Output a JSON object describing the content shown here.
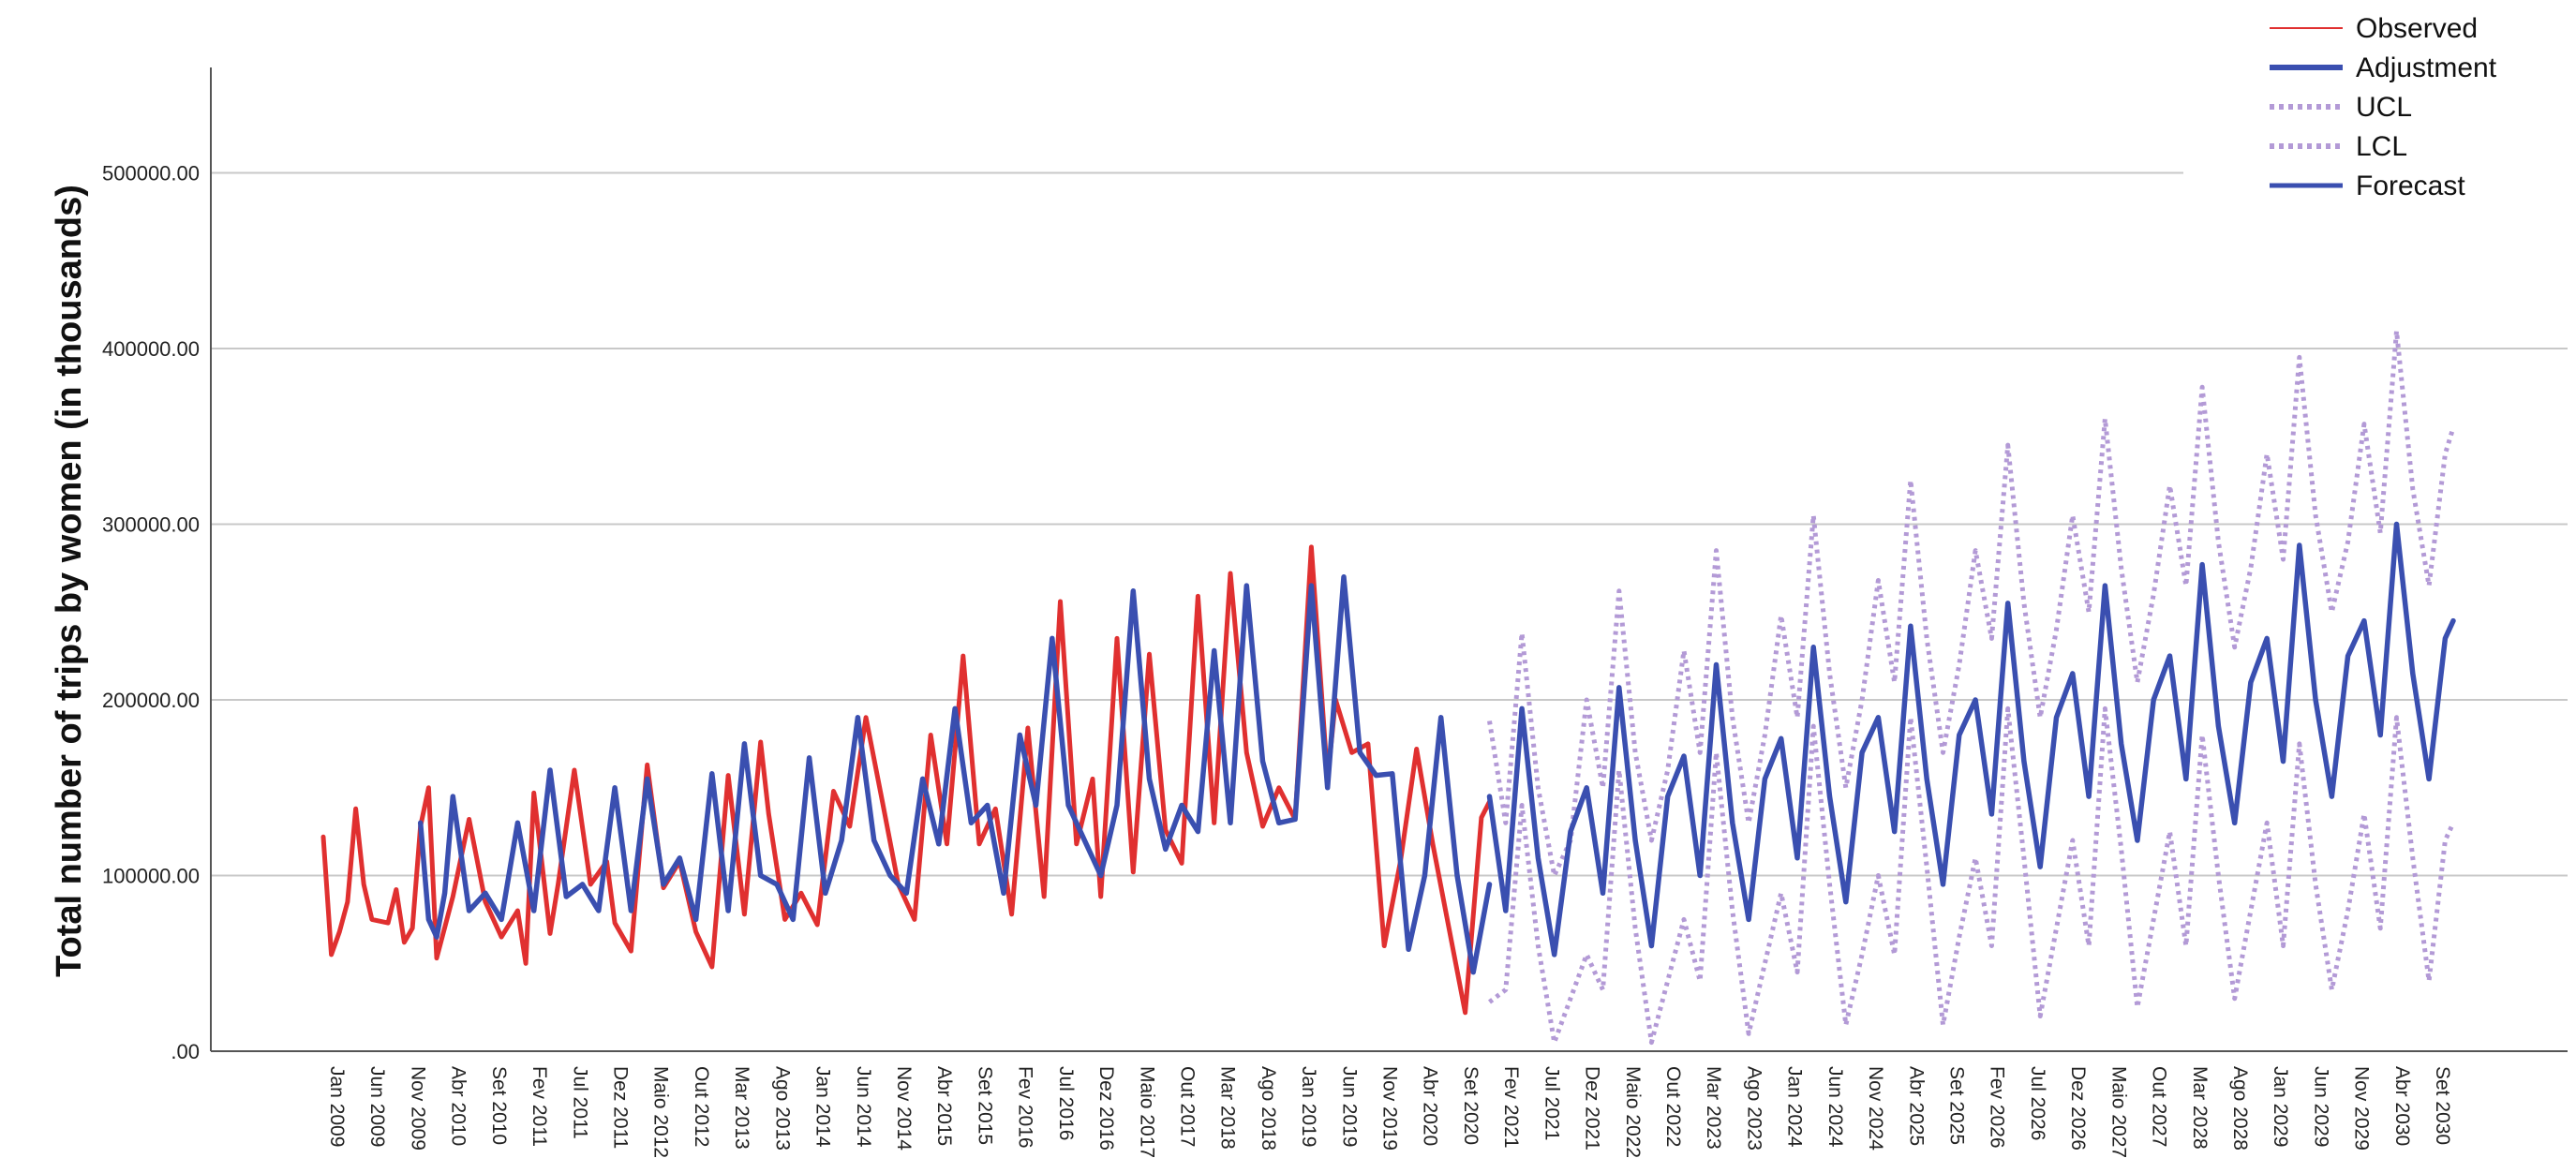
{
  "chart_data": {
    "type": "line",
    "title": "",
    "xlabel": "",
    "ylabel": "Total number of trips by women (in thousands)",
    "ylim": [
      0,
      560000
    ],
    "yticks": [
      0,
      100000,
      200000,
      300000,
      400000,
      500000
    ],
    "ytick_labels": [
      ".00",
      "100000.00",
      "200000.00",
      "300000.00",
      "400000.00",
      "500000.00"
    ],
    "x_start": "2009-01",
    "x_end": "2030-12",
    "x_tick_labels": [
      "Jan 2009",
      "Jun 2009",
      "Nov 2009",
      "Abr 2010",
      "Set 2010",
      "Fev 2011",
      "Jul 2011",
      "Dez 2011",
      "Maio 2012",
      "Out 2012",
      "Mar 2013",
      "Ago 2013",
      "Jan 2014",
      "Jun 2014",
      "Nov 2014",
      "Abr 2015",
      "Set 2015",
      "Fev 2016",
      "Jul 2016",
      "Dez 2016",
      "Maio 2017",
      "Out 2017",
      "Mar 2018",
      "Ago 2018",
      "Jan 2019",
      "Jun 2019",
      "Nov 2019",
      "Abr 2020",
      "Set 2020",
      "Fev 2021",
      "Jul 2021",
      "Dez 2021",
      "Maio 2022",
      "Out 2022",
      "Mar 2023",
      "Ago 2023",
      "Jan 2024",
      "Jun 2024",
      "Nov 2024",
      "Abr 2025",
      "Set 2025",
      "Fev 2026",
      "Jul 2026",
      "Dez 2026",
      "Maio 2027",
      "Out 2027",
      "Mar 2028",
      "Ago 2028",
      "Jan 2029",
      "Jun 2029",
      "Nov 2029",
      "Abr 2030",
      "Set 2030"
    ],
    "grid": "horizontal",
    "legend": {
      "position": "top-right",
      "entries": [
        {
          "name": "Observed",
          "color": "#e03030",
          "style": "solid-thin"
        },
        {
          "name": "Adjustment",
          "color": "#3a4fb0",
          "style": "solid-thick"
        },
        {
          "name": "UCL",
          "color": "#b39ad6",
          "style": "dotted"
        },
        {
          "name": "LCL",
          "color": "#b39ad6",
          "style": "dotted"
        },
        {
          "name": "Forecast",
          "color": "#3a4fb0",
          "style": "solid"
        }
      ]
    },
    "series": [
      {
        "name": "Observed",
        "color": "#e03030",
        "x": [
          "2009-01",
          "2009-02",
          "2009-03",
          "2009-04",
          "2009-05",
          "2009-06",
          "2009-07",
          "2009-09",
          "2009-10",
          "2009-11",
          "2009-12",
          "2010-01",
          "2010-02",
          "2010-03",
          "2010-05",
          "2010-07",
          "2010-09",
          "2010-11",
          "2011-01",
          "2011-02",
          "2011-03",
          "2011-05",
          "2011-06",
          "2011-08",
          "2011-10",
          "2011-12",
          "2012-01",
          "2012-03",
          "2012-05",
          "2012-07",
          "2012-09",
          "2012-11",
          "2013-01",
          "2013-03",
          "2013-05",
          "2013-07",
          "2013-08",
          "2013-10",
          "2013-12",
          "2014-02",
          "2014-04",
          "2014-06",
          "2014-08",
          "2014-10",
          "2014-12",
          "2015-02",
          "2015-04",
          "2015-06",
          "2015-08",
          "2015-10",
          "2015-12",
          "2016-02",
          "2016-04",
          "2016-06",
          "2016-08",
          "2016-10",
          "2016-12",
          "2017-01",
          "2017-03",
          "2017-05",
          "2017-07",
          "2017-09",
          "2017-11",
          "2018-01",
          "2018-03",
          "2018-05",
          "2018-07",
          "2018-09",
          "2018-11",
          "2019-01",
          "2019-03",
          "2019-05",
          "2019-06",
          "2019-08",
          "2019-10",
          "2019-12",
          "2020-02",
          "2020-04",
          "2020-06",
          "2020-08",
          "2020-10",
          "2020-12",
          "2021-01"
        ],
        "y": [
          122000,
          55000,
          68000,
          85000,
          138000,
          95000,
          75000,
          73000,
          92000,
          62000,
          70000,
          128000,
          150000,
          53000,
          88000,
          132000,
          85000,
          65000,
          80000,
          50000,
          147000,
          67000,
          95000,
          160000,
          95000,
          108000,
          73000,
          57000,
          163000,
          93000,
          108000,
          68000,
          48000,
          157000,
          78000,
          176000,
          135000,
          75000,
          90000,
          72000,
          148000,
          128000,
          190000,
          143000,
          95000,
          75000,
          180000,
          118000,
          225000,
          118000,
          138000,
          78000,
          184000,
          88000,
          256000,
          118000,
          155000,
          88000,
          235000,
          102000,
          226000,
          126000,
          107000,
          259000,
          130000,
          272000,
          170000,
          128000,
          150000,
          132000,
          287000,
          155000,
          200000,
          170000,
          175000,
          60000,
          108000,
          172000,
          118000,
          70000,
          22000,
          133000,
          142000
        ]
      },
      {
        "name": "Adjustment",
        "color": "#3a4fb0",
        "x": [
          "2010-01",
          "2010-02",
          "2010-03",
          "2010-04",
          "2010-05",
          "2010-07",
          "2010-09",
          "2010-11",
          "2011-01",
          "2011-03",
          "2011-05",
          "2011-07",
          "2011-09",
          "2011-11",
          "2012-01",
          "2012-03",
          "2012-05",
          "2012-07",
          "2012-09",
          "2012-11",
          "2013-01",
          "2013-03",
          "2013-05",
          "2013-07",
          "2013-09",
          "2013-11",
          "2014-01",
          "2014-03",
          "2014-05",
          "2014-07",
          "2014-09",
          "2014-11",
          "2015-01",
          "2015-03",
          "2015-05",
          "2015-07",
          "2015-09",
          "2015-11",
          "2016-01",
          "2016-03",
          "2016-05",
          "2016-07",
          "2016-09",
          "2016-11",
          "2017-01",
          "2017-03",
          "2017-05",
          "2017-07",
          "2017-09",
          "2017-11",
          "2018-01",
          "2018-03",
          "2018-05",
          "2018-07",
          "2018-09",
          "2018-11",
          "2019-01",
          "2019-03",
          "2019-05",
          "2019-07",
          "2019-09",
          "2019-11",
          "2020-01",
          "2020-03",
          "2020-05",
          "2020-07",
          "2020-09",
          "2020-11",
          "2021-01"
        ],
        "y": [
          130000,
          75000,
          65000,
          90000,
          145000,
          80000,
          90000,
          75000,
          130000,
          80000,
          160000,
          88000,
          95000,
          80000,
          150000,
          80000,
          155000,
          95000,
          110000,
          75000,
          158000,
          80000,
          175000,
          100000,
          95000,
          75000,
          167000,
          90000,
          120000,
          190000,
          120000,
          100000,
          90000,
          155000,
          118000,
          195000,
          130000,
          140000,
          90000,
          180000,
          140000,
          235000,
          140000,
          120000,
          100000,
          140000,
          262000,
          155000,
          115000,
          140000,
          125000,
          228000,
          130000,
          265000,
          165000,
          130000,
          132000,
          265000,
          150000,
          270000,
          170000,
          157000,
          158000,
          58000,
          100000,
          190000,
          100000,
          45000,
          95000
        ]
      },
      {
        "name": "UCL",
        "color": "#b39ad6",
        "x": [
          "2021-01",
          "2021-03",
          "2021-05",
          "2021-07",
          "2021-09",
          "2021-11",
          "2022-01",
          "2022-03",
          "2022-05",
          "2022-07",
          "2022-09",
          "2022-11",
          "2023-01",
          "2023-03",
          "2023-05",
          "2023-07",
          "2023-09",
          "2023-11",
          "2024-01",
          "2024-03",
          "2024-05",
          "2024-07",
          "2024-09",
          "2024-11",
          "2025-01",
          "2025-03",
          "2025-05",
          "2025-07",
          "2025-09",
          "2025-11",
          "2026-01",
          "2026-03",
          "2026-05",
          "2026-07",
          "2026-09",
          "2026-11",
          "2027-01",
          "2027-03",
          "2027-05",
          "2027-07",
          "2027-09",
          "2027-11",
          "2028-01",
          "2028-03",
          "2028-05",
          "2028-07",
          "2028-09",
          "2028-11",
          "2029-01",
          "2029-03",
          "2029-05",
          "2029-07",
          "2029-09",
          "2029-11",
          "2030-01",
          "2030-03",
          "2030-05",
          "2030-07",
          "2030-09",
          "2030-11",
          "2030-12"
        ],
        "y": [
          188000,
          130000,
          238000,
          150000,
          100000,
          120000,
          200000,
          150000,
          262000,
          170000,
          120000,
          160000,
          228000,
          170000,
          285000,
          190000,
          130000,
          180000,
          248000,
          190000,
          305000,
          215000,
          150000,
          200000,
          268000,
          210000,
          325000,
          235000,
          170000,
          220000,
          285000,
          235000,
          345000,
          255000,
          190000,
          240000,
          305000,
          250000,
          360000,
          275000,
          210000,
          260000,
          322000,
          265000,
          378000,
          290000,
          230000,
          275000,
          340000,
          280000,
          395000,
          305000,
          250000,
          290000,
          357000,
          295000,
          410000,
          320000,
          265000,
          340000,
          355000
        ]
      },
      {
        "name": "LCL",
        "color": "#b39ad6",
        "x": [
          "2021-01",
          "2021-03",
          "2021-05",
          "2021-07",
          "2021-09",
          "2021-11",
          "2022-01",
          "2022-03",
          "2022-05",
          "2022-07",
          "2022-09",
          "2022-11",
          "2023-01",
          "2023-03",
          "2023-05",
          "2023-07",
          "2023-09",
          "2023-11",
          "2024-01",
          "2024-03",
          "2024-05",
          "2024-07",
          "2024-09",
          "2024-11",
          "2025-01",
          "2025-03",
          "2025-05",
          "2025-07",
          "2025-09",
          "2025-11",
          "2026-01",
          "2026-03",
          "2026-05",
          "2026-07",
          "2026-09",
          "2026-11",
          "2027-01",
          "2027-03",
          "2027-05",
          "2027-07",
          "2027-09",
          "2027-11",
          "2028-01",
          "2028-03",
          "2028-05",
          "2028-07",
          "2028-09",
          "2028-11",
          "2029-01",
          "2029-03",
          "2029-05",
          "2029-07",
          "2029-09",
          "2029-11",
          "2030-01",
          "2030-03",
          "2030-05",
          "2030-07",
          "2030-09",
          "2030-11",
          "2030-12"
        ],
        "y": [
          28000,
          35000,
          140000,
          60000,
          5000,
          30000,
          55000,
          35000,
          160000,
          70000,
          5000,
          40000,
          75000,
          40000,
          170000,
          80000,
          10000,
          50000,
          90000,
          45000,
          185000,
          95000,
          15000,
          55000,
          100000,
          55000,
          190000,
          105000,
          15000,
          65000,
          110000,
          60000,
          195000,
          110000,
          20000,
          70000,
          120000,
          60000,
          195000,
          115000,
          25000,
          75000,
          125000,
          60000,
          180000,
          100000,
          30000,
          80000,
          130000,
          60000,
          175000,
          95000,
          35000,
          80000,
          135000,
          70000,
          190000,
          110000,
          40000,
          120000,
          130000
        ]
      },
      {
        "name": "Forecast",
        "color": "#3a4fb0",
        "x": [
          "2021-01",
          "2021-03",
          "2021-05",
          "2021-07",
          "2021-09",
          "2021-11",
          "2022-01",
          "2022-03",
          "2022-05",
          "2022-07",
          "2022-09",
          "2022-11",
          "2023-01",
          "2023-03",
          "2023-05",
          "2023-07",
          "2023-09",
          "2023-11",
          "2024-01",
          "2024-03",
          "2024-05",
          "2024-07",
          "2024-09",
          "2024-11",
          "2025-01",
          "2025-03",
          "2025-05",
          "2025-07",
          "2025-09",
          "2025-11",
          "2026-01",
          "2026-03",
          "2026-05",
          "2026-07",
          "2026-09",
          "2026-11",
          "2027-01",
          "2027-03",
          "2027-05",
          "2027-07",
          "2027-09",
          "2027-11",
          "2028-01",
          "2028-03",
          "2028-05",
          "2028-07",
          "2028-09",
          "2028-11",
          "2029-01",
          "2029-03",
          "2029-05",
          "2029-07",
          "2029-09",
          "2029-11",
          "2030-01",
          "2030-03",
          "2030-05",
          "2030-07",
          "2030-09",
          "2030-11",
          "2030-12"
        ],
        "y": [
          145000,
          80000,
          195000,
          110000,
          55000,
          125000,
          150000,
          90000,
          207000,
          120000,
          60000,
          145000,
          168000,
          100000,
          220000,
          130000,
          75000,
          155000,
          178000,
          110000,
          230000,
          145000,
          85000,
          170000,
          190000,
          125000,
          242000,
          155000,
          95000,
          180000,
          200000,
          135000,
          255000,
          165000,
          105000,
          190000,
          215000,
          145000,
          265000,
          175000,
          120000,
          200000,
          225000,
          155000,
          277000,
          185000,
          130000,
          210000,
          235000,
          165000,
          288000,
          200000,
          145000,
          225000,
          245000,
          180000,
          300000,
          215000,
          155000,
          235000,
          245000
        ]
      }
    ]
  }
}
